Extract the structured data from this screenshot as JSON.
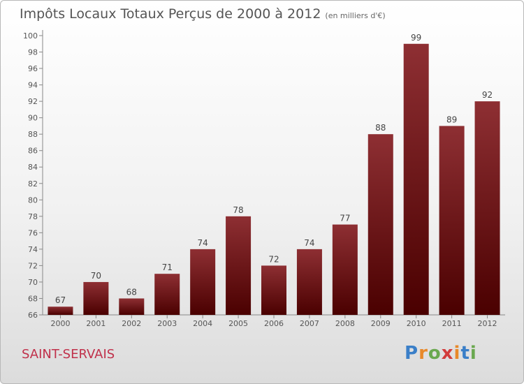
{
  "chart_data": {
    "type": "bar",
    "title": "Impôts Locaux Totaux Perçus de 2000 à 2012",
    "subtitle": "(en milliers d'€)",
    "categories": [
      "2000",
      "2001",
      "2002",
      "2003",
      "2004",
      "2005",
      "2006",
      "2007",
      "2008",
      "2009",
      "2010",
      "2011",
      "2012"
    ],
    "values": [
      67,
      70,
      68,
      71,
      74,
      78,
      72,
      74,
      77,
      88,
      99,
      89,
      92
    ],
    "ylim": [
      66,
      100
    ],
    "yticks": [
      66,
      68,
      70,
      72,
      74,
      76,
      78,
      80,
      82,
      84,
      86,
      88,
      90,
      92,
      94,
      96,
      98,
      100
    ],
    "xlabel": "",
    "ylabel": "",
    "grid": false,
    "bar_color": "#7a1c20"
  },
  "footer": {
    "city": "SAINT-SERVAIS",
    "logo_text": "Proxiti"
  }
}
